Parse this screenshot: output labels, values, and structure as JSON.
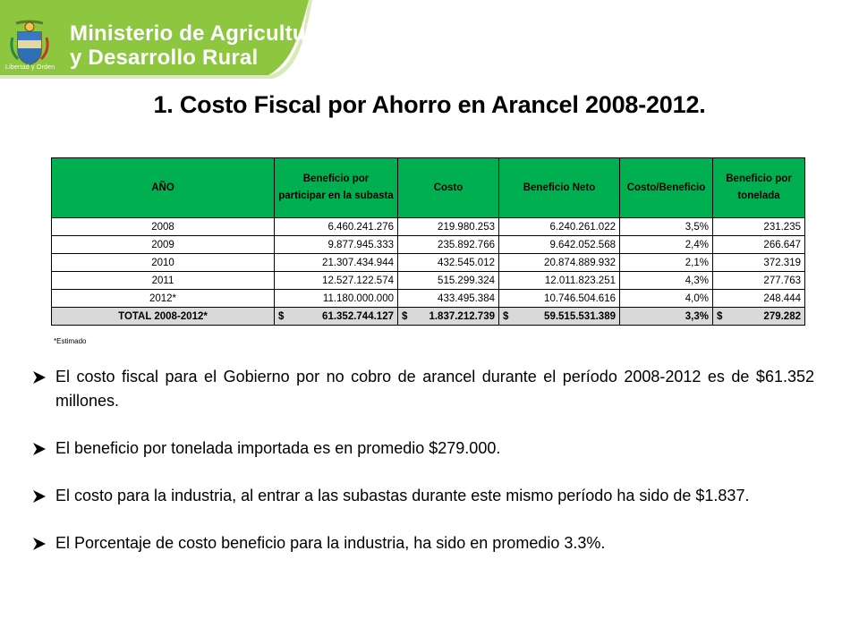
{
  "header": {
    "ministry_line1": "Ministerio de Agricultura",
    "ministry_line2": "y Desarrollo Rural",
    "motto": "Libertad y Orden",
    "brand_color": "#8dc63f"
  },
  "title": "1.  Costo Fiscal por Ahorro en Arancel 2008-2012.",
  "table": {
    "header_color": "#00b050",
    "columns": [
      "AÑO",
      "Beneficio por participar en la subasta",
      "Costo",
      "Beneficio Neto",
      "Costo/Beneficio",
      "Beneficio por tonelada"
    ],
    "rows": [
      [
        "2008",
        "6.460.241.276",
        "219.980.253",
        "6.240.261.022",
        "3,5%",
        "231.235"
      ],
      [
        "2009",
        "9.877.945.333",
        "235.892.766",
        "9.642.052.568",
        "2,4%",
        "266.647"
      ],
      [
        "2010",
        "21.307.434.944",
        "432.545.012",
        "20.874.889.932",
        "2,1%",
        "372.319"
      ],
      [
        "2011",
        "12.527.122.574",
        "515.299.324",
        "12.011.823.251",
        "4,3%",
        "277.763"
      ],
      [
        "2012*",
        "11.180.000.000",
        "433.495.384",
        "10.746.504.616",
        "4,0%",
        "248.444"
      ]
    ],
    "total": {
      "label": "TOTAL 2008-2012*",
      "currency": "$",
      "beneficio": "61.352.744.127",
      "costo": "1.837.212.739",
      "neto": "59.515.531.389",
      "ratio": "3,3%",
      "tonelada": "279.282"
    },
    "note": "*Estimado"
  },
  "bullets": [
    "El costo fiscal para el Gobierno por no cobro de arancel durante el período 2008-2012 es de $61.352 millones.",
    "El beneficio por tonelada importada es en promedio $279.000.",
    "El costo para la industria, al entrar a las subastas durante este mismo período ha sido de $1.837.",
    "El Porcentaje de costo beneficio para la industria, ha sido en promedio 3.3%."
  ]
}
